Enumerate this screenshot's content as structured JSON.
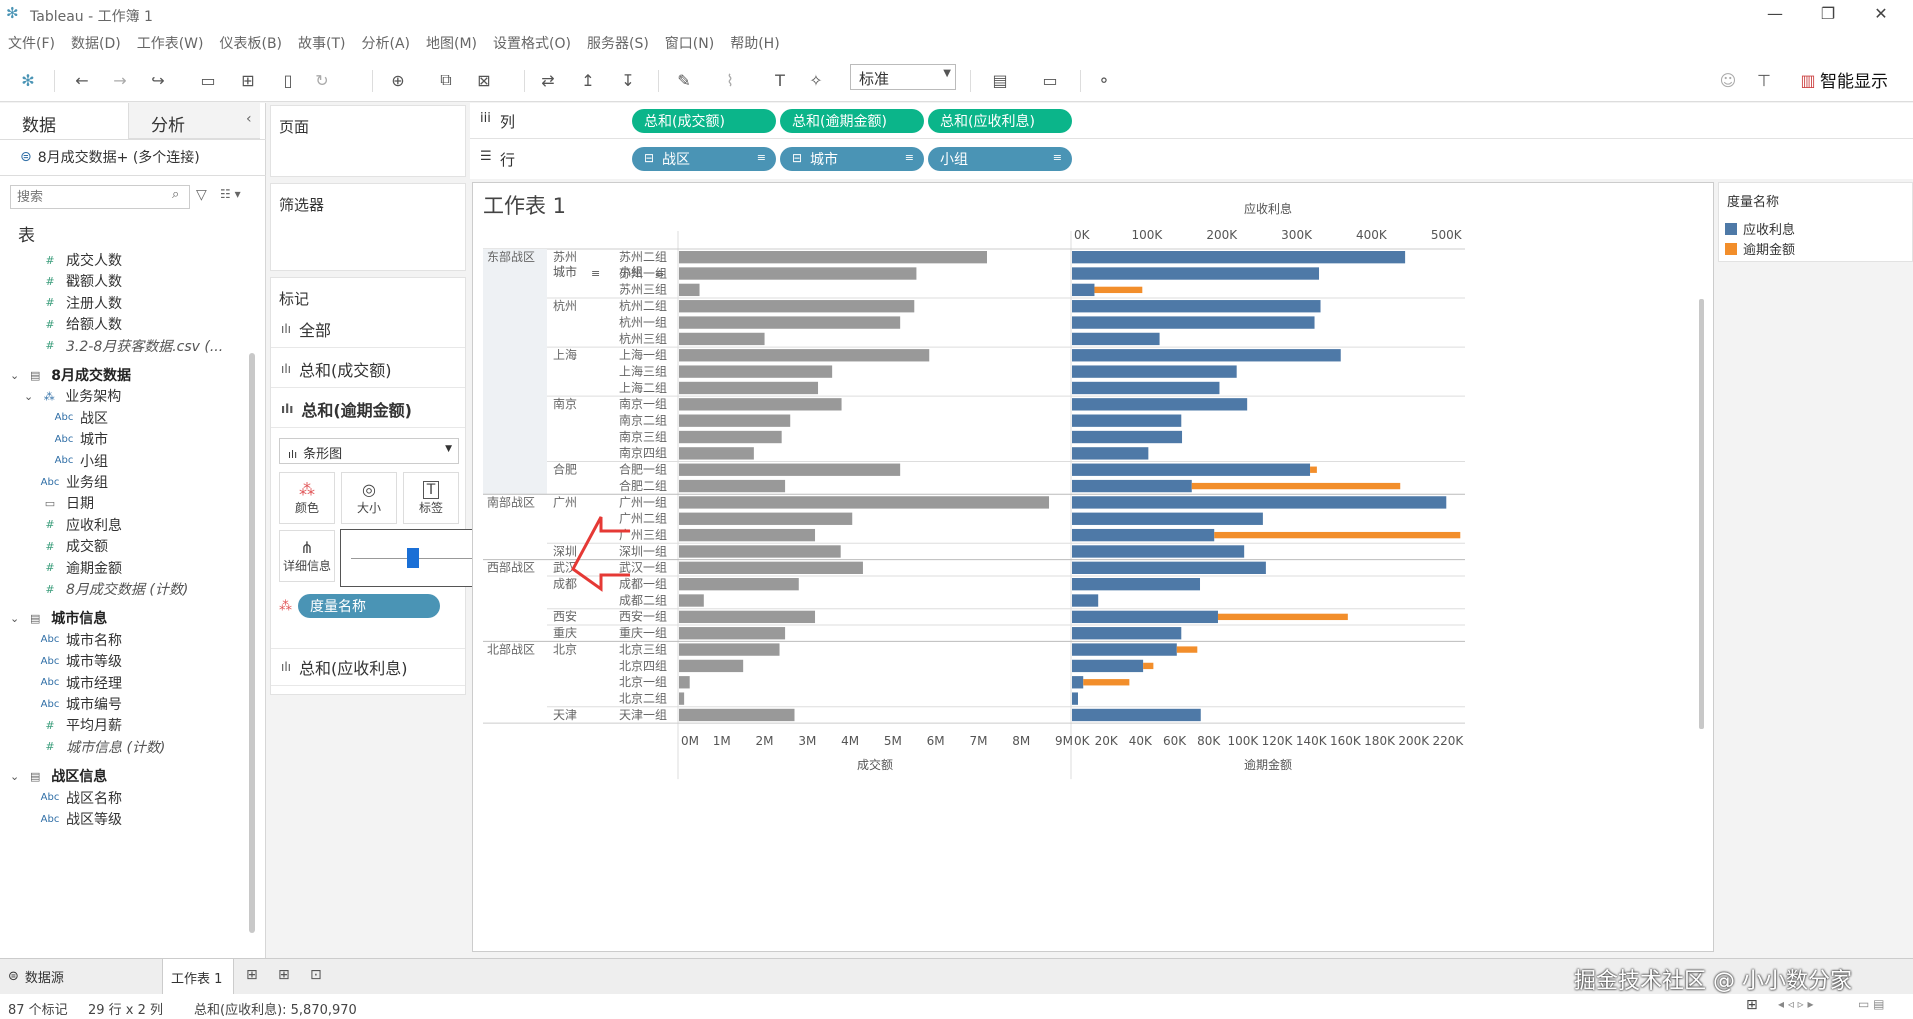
{
  "window": {
    "title": "Tableau - 工作簿 1"
  },
  "menu": [
    "文件(F)",
    "数据(D)",
    "工作表(W)",
    "仪表板(B)",
    "故事(T)",
    "分析(A)",
    "地图(M)",
    "设置格式(O)",
    "服务器(S)",
    "窗口(N)",
    "帮助(H)"
  ],
  "toolbar": {
    "fit_value": "标准",
    "show_me_label": "智能显示"
  },
  "left_pane": {
    "tabs": [
      "数据",
      "分析"
    ],
    "datasource": "8月成交数据+ (多个连接)",
    "search_placeholder": "搜索",
    "section_label": "表",
    "fields": [
      {
        "label": "成交人数",
        "type": "measure",
        "indent": 2
      },
      {
        "label": "戳额人数",
        "type": "measure",
        "indent": 2
      },
      {
        "label": "注册人数",
        "type": "measure",
        "indent": 2
      },
      {
        "label": "给额人数",
        "type": "measure",
        "indent": 2
      },
      {
        "label": "3.2-8月获客数据.csv (...",
        "type": "measure-italic",
        "indent": 2
      },
      {
        "label": "8月成交数据",
        "type": "group",
        "indent": 0
      },
      {
        "label": "业务架构",
        "type": "hierarchy",
        "indent": 1
      },
      {
        "label": "战区",
        "type": "dimension",
        "indent": 3
      },
      {
        "label": "城市",
        "type": "dimension",
        "indent": 3
      },
      {
        "label": "小组",
        "type": "dimension",
        "indent": 3
      },
      {
        "label": "业务组",
        "type": "dimension",
        "indent": 2
      },
      {
        "label": "日期",
        "type": "date",
        "indent": 2
      },
      {
        "label": "应收利息",
        "type": "measure",
        "indent": 2
      },
      {
        "label": "成交额",
        "type": "measure",
        "indent": 2
      },
      {
        "label": "逾期金额",
        "type": "measure",
        "indent": 2
      },
      {
        "label": "8月成交数据 (计数)",
        "type": "measure-italic",
        "indent": 2
      },
      {
        "label": "城市信息",
        "type": "group",
        "indent": 0
      },
      {
        "label": "城市名称",
        "type": "dimension",
        "indent": 2
      },
      {
        "label": "城市等级",
        "type": "dimension",
        "indent": 2
      },
      {
        "label": "城市经理",
        "type": "dimension",
        "indent": 2
      },
      {
        "label": "城市编号",
        "type": "dimension",
        "indent": 2
      },
      {
        "label": "平均月薪",
        "type": "measure",
        "indent": 2
      },
      {
        "label": "城市信息 (计数)",
        "type": "measure-italic",
        "indent": 2
      },
      {
        "label": "战区信息",
        "type": "group",
        "indent": 0
      },
      {
        "label": "战区名称",
        "type": "dimension",
        "indent": 2
      },
      {
        "label": "战区等级",
        "type": "dimension",
        "indent": 2
      }
    ]
  },
  "mid_pane": {
    "pages_label": "页面",
    "filters_label": "筛选器",
    "marks_label": "标记",
    "marks_items": [
      "全部",
      "总和(成交额)",
      "总和(逾期金额)"
    ],
    "mark_type": "条形图",
    "mark_buttons": [
      "颜色",
      "大小",
      "标签",
      "详细信息"
    ],
    "color_pill": "度量名称",
    "marks_last": "总和(应收利息)"
  },
  "shelves": {
    "columns_label": "列",
    "rows_label": "行",
    "columns": [
      "总和(成交额)",
      "总和(逾期金额)",
      "总和(应收利息)"
    ],
    "rows": [
      "战区",
      "城市",
      "小组"
    ]
  },
  "legend": {
    "title": "度量名称",
    "items": [
      {
        "label": "应收利息",
        "color": "#4e79a7"
      },
      {
        "label": "逾期金额",
        "color": "#f28e2b"
      }
    ]
  },
  "bottom": {
    "datasource_tab": "数据源",
    "sheet_tab": "工作表 1"
  },
  "status": {
    "marks": "87 个标记",
    "rowscols": "29 行 x 2 列",
    "sum": "总和(应收利息): 5,870,970"
  },
  "watermark": "掘金技术社区 @ 小小数分家",
  "chart_data": {
    "type": "bar",
    "title": "工作表 1",
    "row_headers": [
      "战区",
      "城市",
      "小组"
    ],
    "colors": {
      "gray": "#999999",
      "blue": "#4e79a7",
      "orange": "#f28e2b"
    },
    "panels": [
      {
        "measure": "成交额",
        "xlabel": "成交额",
        "ticks": [
          "0M",
          "1M",
          "2M",
          "3M",
          "4M",
          "5M",
          "6M",
          "7M",
          "8M",
          "9M"
        ],
        "xlim": [
          0,
          9000000
        ]
      },
      {
        "measure": "逾期金额",
        "xlabel": "逾期金额",
        "ticks": [
          "0K",
          "20K",
          "40K",
          "60K",
          "80K",
          "100K",
          "120K",
          "140K",
          "160K",
          "180K",
          "200K",
          "220K"
        ],
        "xlim": [
          0,
          230000
        ]
      },
      {
        "measure": "应收利息",
        "xlabel": "应收利息",
        "ticks": [
          "0K",
          "100K",
          "200K",
          "300K",
          "400K",
          "500K"
        ],
        "xlim": [
          0,
          525000
        ]
      }
    ],
    "rows": [
      {
        "zone": "东部战区",
        "city": "苏州",
        "group": "苏州二组",
        "deal": 7200000,
        "interest": 445000,
        "overdue": 0
      },
      {
        "zone": "",
        "city": "",
        "group": "苏州一组",
        "deal": 5550000,
        "interest": 330000,
        "overdue": 0
      },
      {
        "zone": "",
        "city": "",
        "group": "苏州三组",
        "deal": 480000,
        "interest": 30000,
        "overdue": 28000
      },
      {
        "zone": "",
        "city": "杭州",
        "group": "杭州二组",
        "deal": 5500000,
        "interest": 332000,
        "overdue": 0
      },
      {
        "zone": "",
        "city": "",
        "group": "杭州一组",
        "deal": 5170000,
        "interest": 324000,
        "overdue": 0
      },
      {
        "zone": "",
        "city": "",
        "group": "杭州三组",
        "deal": 2000000,
        "interest": 117000,
        "overdue": 0
      },
      {
        "zone": "",
        "city": "上海",
        "group": "上海一组",
        "deal": 5850000,
        "interest": 359000,
        "overdue": 0
      },
      {
        "zone": "",
        "city": "",
        "group": "上海三组",
        "deal": 3580000,
        "interest": 220000,
        "overdue": 0
      },
      {
        "zone": "",
        "city": "",
        "group": "上海二组",
        "deal": 3250000,
        "interest": 197000,
        "overdue": 0
      },
      {
        "zone": "",
        "city": "南京",
        "group": "南京一组",
        "deal": 3800000,
        "interest": 234000,
        "overdue": 0
      },
      {
        "zone": "",
        "city": "",
        "group": "南京二组",
        "deal": 2600000,
        "interest": 146000,
        "overdue": 0
      },
      {
        "zone": "",
        "city": "",
        "group": "南京三组",
        "deal": 2400000,
        "interest": 147000,
        "overdue": 0
      },
      {
        "zone": "",
        "city": "",
        "group": "南京四组",
        "deal": 1750000,
        "interest": 102000,
        "overdue": 0
      },
      {
        "zone": "",
        "city": "合肥",
        "group": "合肥一组",
        "deal": 5170000,
        "interest": 318000,
        "overdue": 4000
      },
      {
        "zone": "",
        "city": "",
        "group": "合肥二组",
        "deal": 2480000,
        "interest": 160000,
        "overdue": 122000
      },
      {
        "zone": "南部战区",
        "city": "广州",
        "group": "广州一组",
        "deal": 8650000,
        "interest": 500000,
        "overdue": 0
      },
      {
        "zone": "",
        "city": "",
        "group": "广州二组",
        "deal": 4050000,
        "interest": 255000,
        "overdue": 0
      },
      {
        "zone": "",
        "city": "",
        "group": "广州三组",
        "deal": 3180000,
        "interest": 190000,
        "overdue": 144000
      },
      {
        "zone": "",
        "city": "深圳",
        "group": "深圳一组",
        "deal": 3780000,
        "interest": 230000,
        "overdue": 0
      },
      {
        "zone": "西部战区",
        "city": "武汉",
        "group": "武汉一组",
        "deal": 4300000,
        "interest": 259000,
        "overdue": 0
      },
      {
        "zone": "",
        "city": "成都",
        "group": "成都一组",
        "deal": 2800000,
        "interest": 171000,
        "overdue": 0
      },
      {
        "zone": "",
        "city": "",
        "group": "成都二组",
        "deal": 580000,
        "interest": 35000,
        "overdue": 0
      },
      {
        "zone": "",
        "city": "西安",
        "group": "西安一组",
        "deal": 3180000,
        "interest": 195000,
        "overdue": 76000
      },
      {
        "zone": "",
        "city": "重庆",
        "group": "重庆一组",
        "deal": 2480000,
        "interest": 146000,
        "overdue": 0
      },
      {
        "zone": "北部战区",
        "city": "北京",
        "group": "北京三组",
        "deal": 2350000,
        "interest": 140000,
        "overdue": 12000
      },
      {
        "zone": "",
        "city": "",
        "group": "北京四组",
        "deal": 1500000,
        "interest": 95000,
        "overdue": 6000
      },
      {
        "zone": "",
        "city": "",
        "group": "北京一组",
        "deal": 250000,
        "interest": 15000,
        "overdue": 27000
      },
      {
        "zone": "",
        "city": "",
        "group": "北京二组",
        "deal": 120000,
        "interest": 8000,
        "overdue": 0
      },
      {
        "zone": "",
        "city": "天津",
        "group": "天津一组",
        "deal": 2700000,
        "interest": 172000,
        "overdue": 0
      }
    ]
  }
}
